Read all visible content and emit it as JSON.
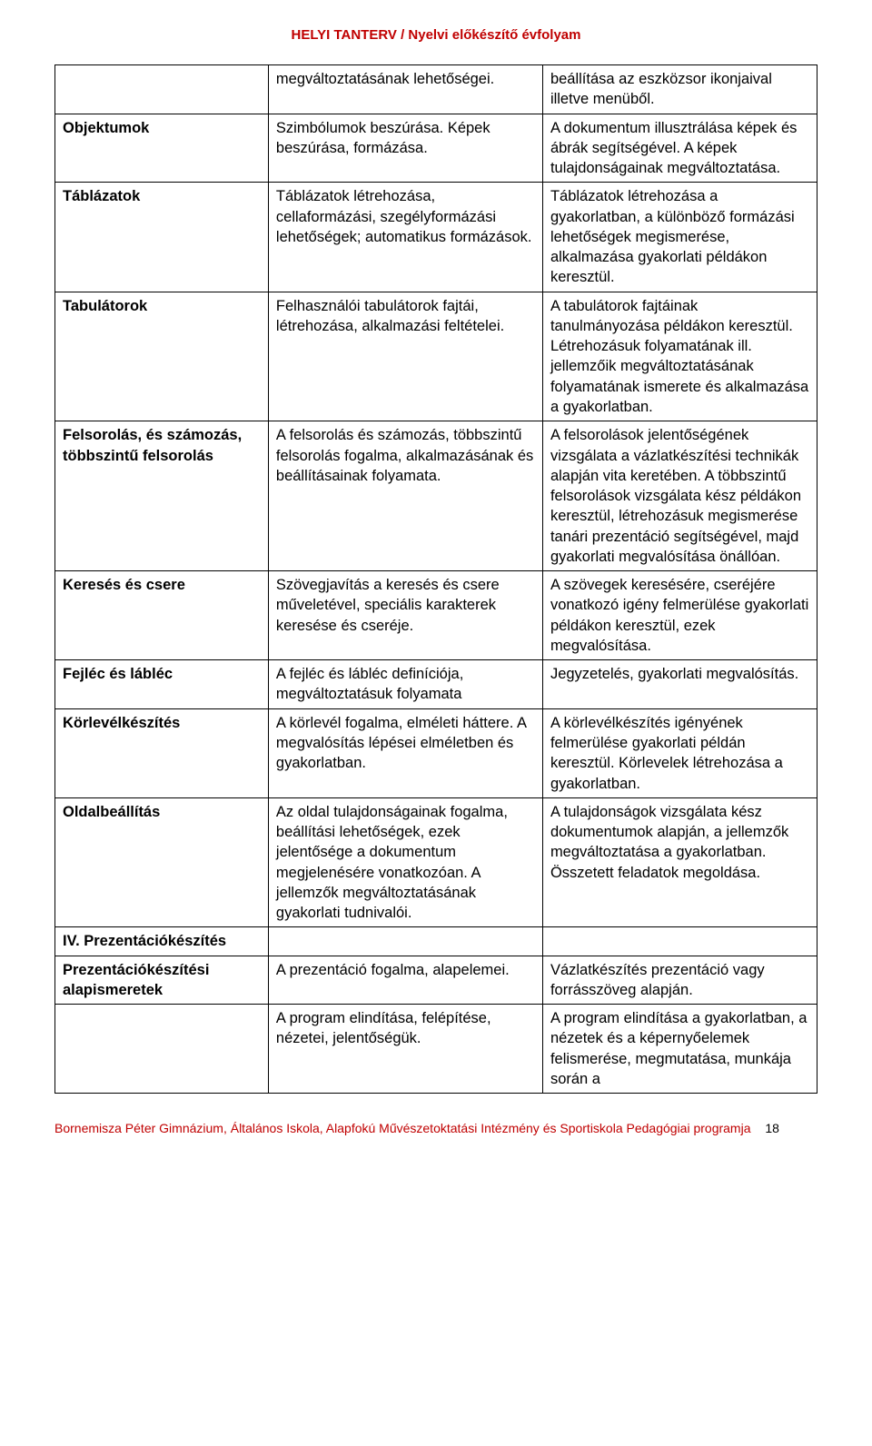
{
  "header": {
    "text_left": "HELYI TANTERV /",
    "text_right": " Nyelvi előkészítő évfolyam",
    "color": "#c00000",
    "fontsize": 15
  },
  "table": {
    "border_color": "#000000",
    "fontsize": 16.5,
    "col1_weight": "bold",
    "rows": [
      {
        "c1": "",
        "c2": "megváltoztatásának lehetőségei.",
        "c3": "beállítása az eszközsor ikonjaival illetve menüből."
      },
      {
        "c1": "Objektumok",
        "c2": "Szimbólumok beszúrása. Képek beszúrása, formázása.",
        "c3": "A dokumentum illusztrálása képek és ábrák segítségével. A képek tulajdonságainak megváltoztatása."
      },
      {
        "c1": "Táblázatok",
        "c2": "Táblázatok létrehozása, cellaformázási, szegélyformázási lehetőségek; automatikus formázások.",
        "c3": "Táblázatok létrehozása a gyakorlatban, a különböző formázási lehetőségek megismerése, alkalmazása gyakorlati példákon keresztül."
      },
      {
        "c1": "Tabulátorok",
        "c2": "Felhasználói tabulátorok fajtái, létrehozása, alkalmazási feltételei.",
        "c3": "A tabulátorok fajtáinak tanulmányozása példákon keresztül. Létrehozásuk folyamatának ill. jellemzőik megváltoztatásának folyamatának ismerete és alkalmazása a gyakorlatban."
      },
      {
        "c1": "Felsorolás, és számozás, többszintű felsorolás",
        "c2": "A felsorolás és számozás, többszintű felsorolás fogalma, alkalmazásának és beállításainak folyamata.",
        "c3": "A felsorolások jelentőségének vizsgálata a vázlatkészítési technikák alapján vita keretében. A többszintű felsorolások vizsgálata kész példákon keresztül, létrehozásuk megismerése tanári prezentáció segítségével, majd gyakorlati megvalósítása önállóan."
      },
      {
        "c1": "Keresés és csere",
        "c2": "Szövegjavítás a keresés és csere műveletével, speciális karakterek keresése és cseréje.",
        "c3": "A szövegek keresésére, cseréjére vonatkozó igény felmerülése gyakorlati példákon keresztül, ezek megvalósítása."
      },
      {
        "c1": "Fejléc és lábléc",
        "c2": "A fejléc és lábléc definíciója, megváltoztatásuk folyamata",
        "c3": "Jegyzetelés, gyakorlati megvalósítás."
      },
      {
        "c1": "Körlevélkészítés",
        "c2": "A körlevél fogalma, elméleti háttere. A megvalósítás lépései elméletben és gyakorlatban.",
        "c3": "A körlevélkészítés igényének felmerülése gyakorlati példán keresztül. Körlevelek létrehozása a gyakorlatban."
      },
      {
        "c1": "Oldalbeállítás",
        "c2": "Az oldal tulajdonságainak fogalma, beállítási lehetőségek, ezek jelentősége a dokumentum megjelenésére vonatkozóan. A jellemzők megváltoztatásának gyakorlati tudnivalói.",
        "c3": "A tulajdonságok vizsgálata kész dokumentumok alapján, a jellemzők megváltoztatása a gyakorlatban. Összetett feladatok megoldása."
      },
      {
        "c1": "IV. Prezentációkészítés",
        "c2": "",
        "c3": ""
      },
      {
        "c1": "Prezentációkészítési alapismeretek",
        "c2": "A prezentáció fogalma, alapelemei.",
        "c3": "Vázlatkészítés prezentáció vagy forrásszöveg alapján."
      },
      {
        "c1": "",
        "c2": "A program elindítása, felépítése, nézetei, jelentőségük.",
        "c3": "A program elindítása a gyakorlatban, a nézetek és a képernyőelemek felismerése, megmutatása, munkája során a"
      }
    ]
  },
  "footer": {
    "text": "Bornemisza Péter Gimnázium, Általános Iskola, Alapfokú Művészetoktatási Intézmény és Sportiskola Pedagógiai programja",
    "page": "18",
    "color": "#c00000"
  }
}
